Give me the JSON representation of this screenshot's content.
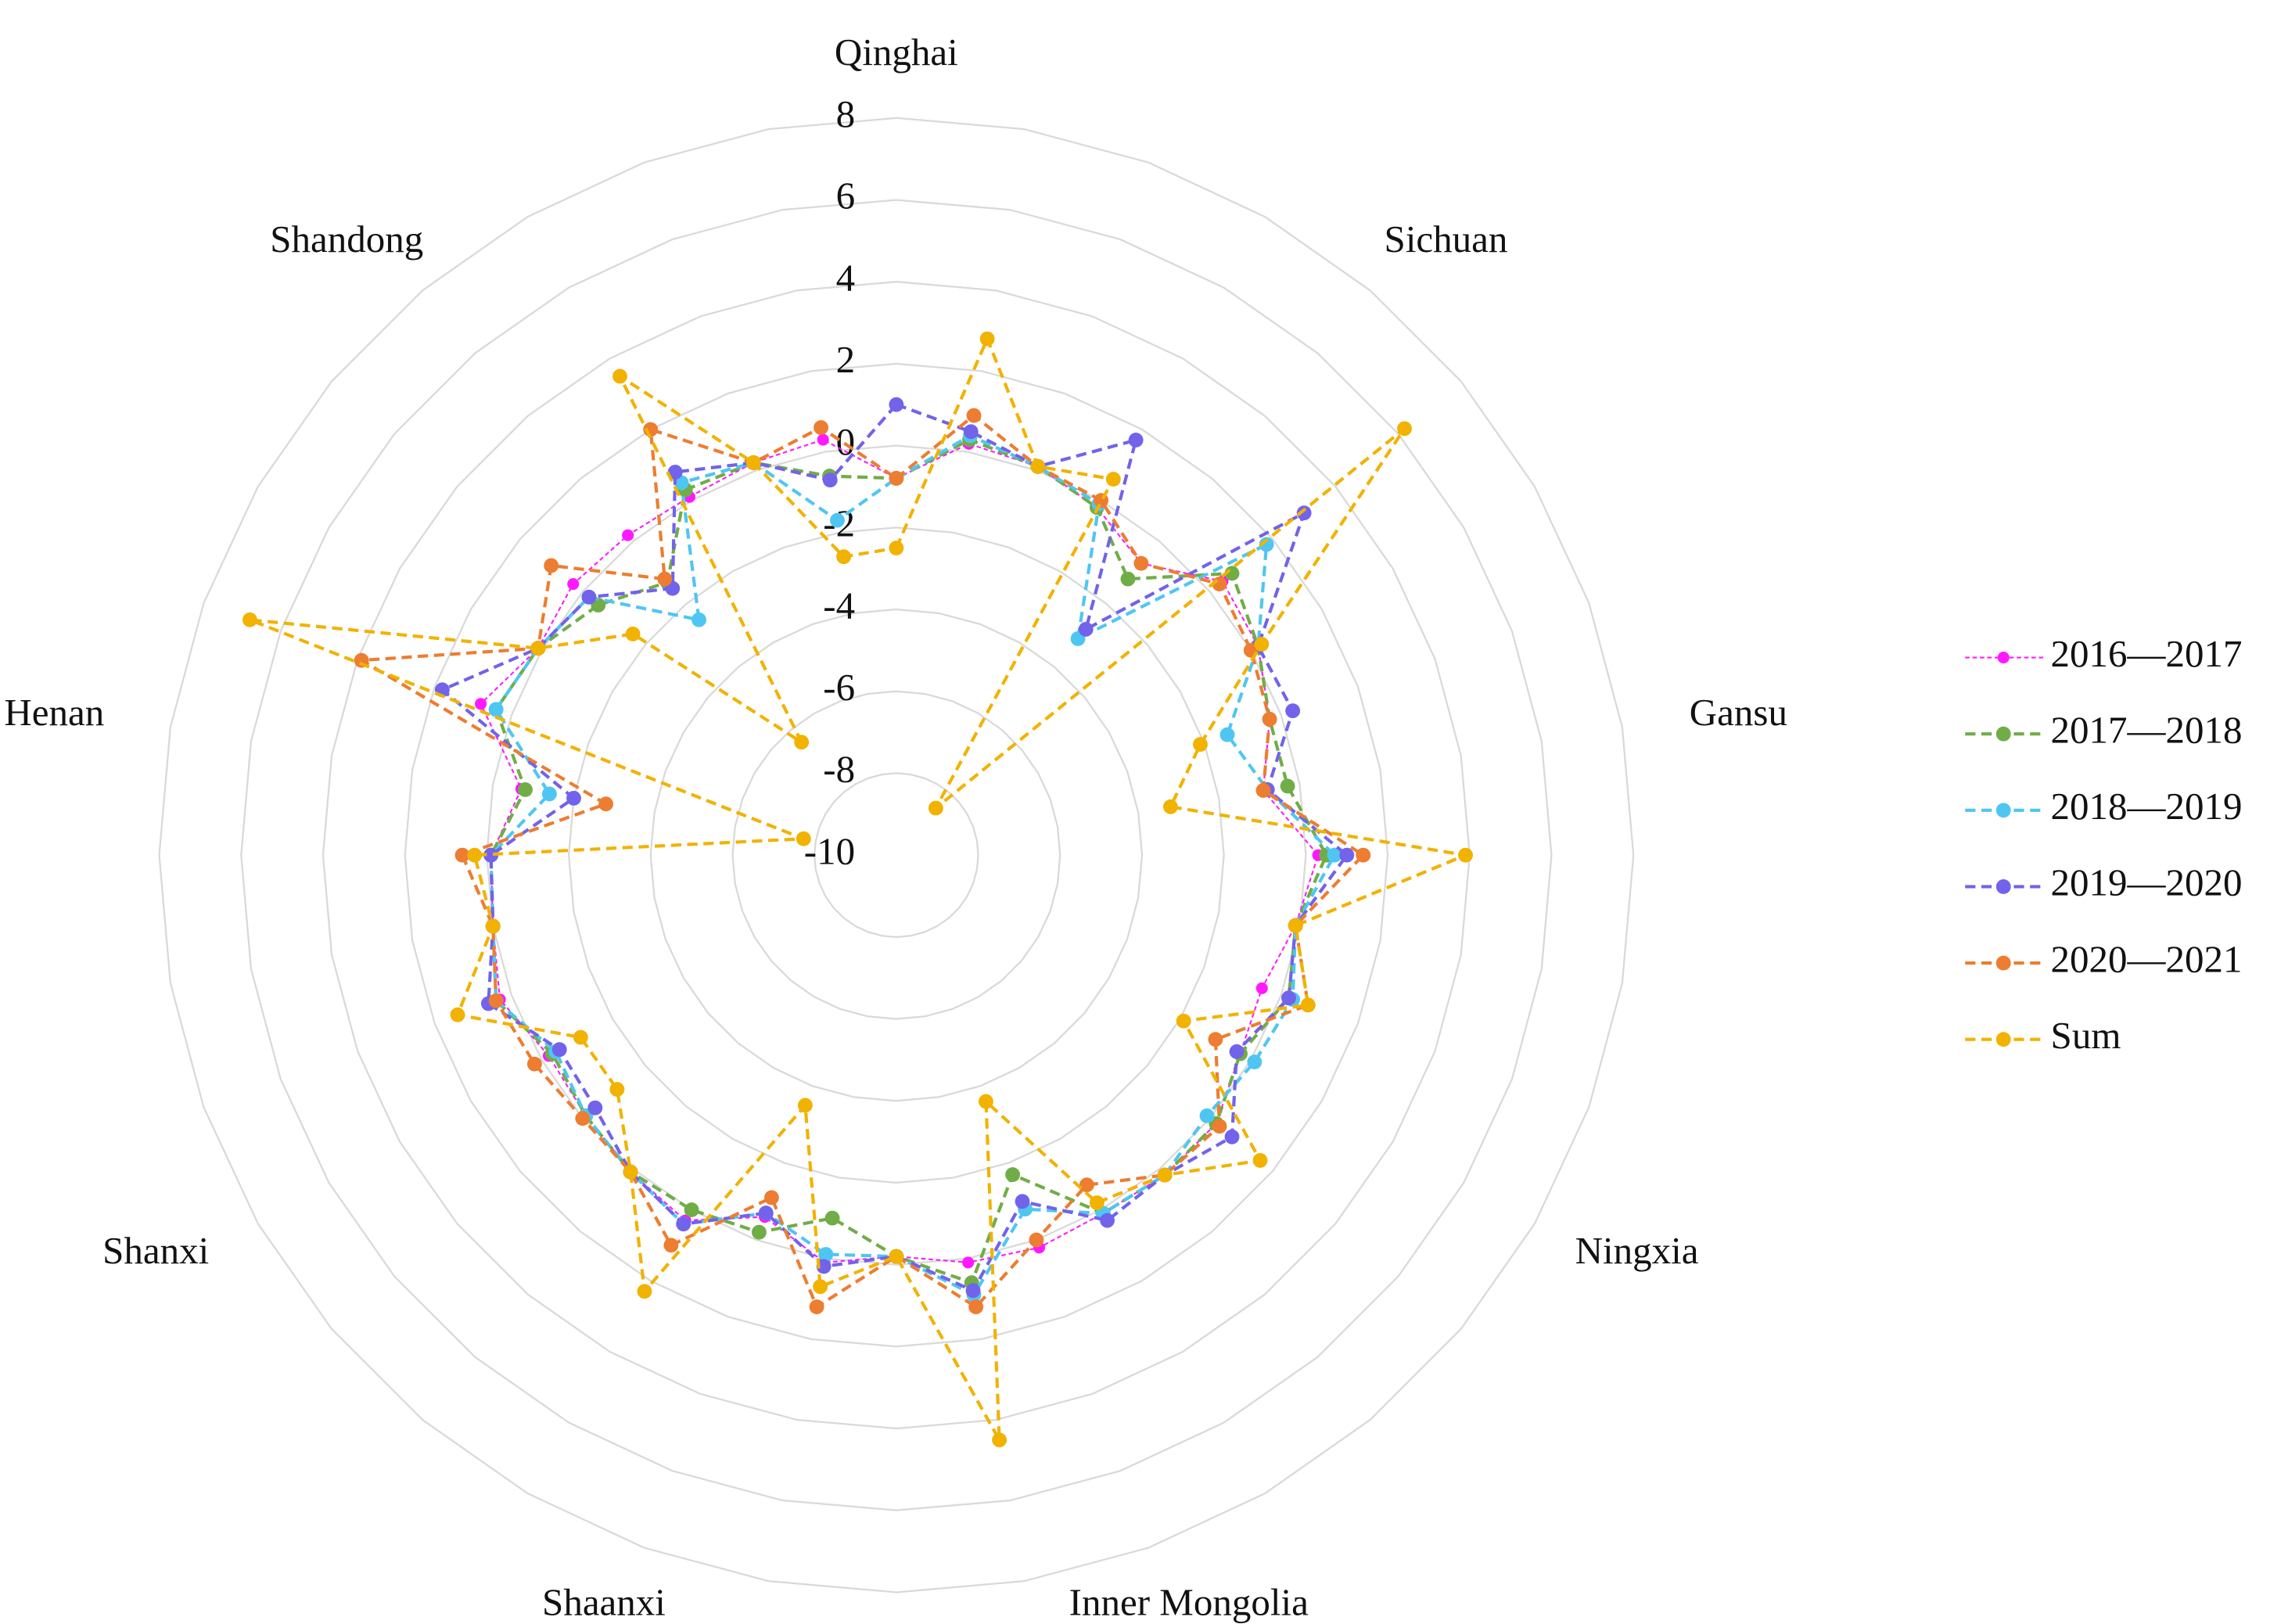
{
  "chart_data": {
    "type": "radar",
    "categories": [
      "Qinghai",
      null,
      null,
      null,
      "Sichuan",
      null,
      null,
      null,
      "Gansu",
      null,
      null,
      null,
      "Ningxia",
      null,
      null,
      null,
      "Inner Mongolia",
      null,
      null,
      null,
      "Shaanxi",
      null,
      null,
      null,
      "Shanxi",
      null,
      null,
      null,
      "Henan",
      null,
      null,
      null,
      "Shandong",
      null,
      null,
      null
    ],
    "ylim": [
      -10,
      8
    ],
    "yticks": [
      -10,
      -8,
      -6,
      -4,
      -2,
      0,
      2,
      4,
      6,
      8
    ],
    "grid": true,
    "legend": "right",
    "series": [
      {
        "name": "2016—2017",
        "color": "#ff19ff",
        "values": [
          -0.8,
          0.2,
          0.1,
          -0.2,
          -0.7,
          0.4,
          0.2,
          -0.3,
          -0.9,
          0.3,
          -0.1,
          -0.5,
          -0.3,
          0.2,
          0.2,
          0.1,
          0.2,
          0.1,
          -0.2,
          0.1,
          -0.6,
          0.3,
          0.1,
          -0.1,
          -0.2,
          0.3,
          0.0,
          -0.1,
          -0.7,
          0.8,
          0.1,
          0.3,
          0.2,
          0.1,
          0.2,
          0.3
        ]
      },
      {
        "name": "2017—2018",
        "color": "#70ad47",
        "values": [
          -0.8,
          0.3,
          0.1,
          -0.2,
          -1.2,
          0.7,
          0.2,
          -0.3,
          -0.3,
          0.5,
          -0.1,
          0.2,
          -0.3,
          0.2,
          0.2,
          0.1,
          -1.7,
          0.6,
          -0.2,
          -1.0,
          -0.2,
          0.0,
          0.1,
          -0.1,
          -0.3,
          0.4,
          0.0,
          -0.1,
          -0.8,
          0.4,
          0.1,
          -0.5,
          -1.3,
          0.3,
          0.2,
          -0.6
        ]
      },
      {
        "name": "2018—2019",
        "color": "#4fc6f2",
        "values": [
          -0.8,
          0.4,
          0.1,
          -0.1,
          -3.1,
          1.8,
          0.2,
          -1.4,
          -0.8,
          0.7,
          -0.1,
          0.3,
          0.1,
          -0.1,
          0.2,
          0.1,
          -0.8,
          0.9,
          -0.2,
          -0.1,
          -0.7,
          0.4,
          0.1,
          -0.1,
          -0.4,
          0.4,
          0.0,
          -0.1,
          -1.4,
          0.4,
          0.1,
          -0.2,
          -2.5,
          0.5,
          0.2,
          -1.7
        ]
      },
      {
        "name": "2019—2020",
        "color": "#7163ea",
        "values": [
          1.0,
          0.5,
          0.1,
          1.7,
          -2.8,
          3.0,
          0.2,
          0.3,
          -0.8,
          1.0,
          -0.1,
          0.2,
          -0.4,
          0.7,
          0.2,
          0.3,
          -1.0,
          0.8,
          -0.2,
          0.2,
          -0.7,
          0.4,
          0.1,
          -0.4,
          -0.5,
          0.6,
          0.0,
          -0.1,
          -2.0,
          1.8,
          0.1,
          -0.2,
          -1.5,
          0.8,
          0.2,
          -0.7
        ]
      },
      {
        "name": "2020—2021",
        "color": "#ed7d31",
        "values": [
          -0.8,
          0.9,
          0.1,
          0.0,
          -0.7,
          0.3,
          0.0,
          -0.3,
          -0.9,
          1.4,
          -0.1,
          0.7,
          -1.0,
          0.3,
          0.2,
          -0.7,
          0.0,
          1.2,
          -0.2,
          1.2,
          -1.1,
          1.0,
          0.1,
          0.0,
          0.2,
          0.4,
          0.0,
          0.6,
          -2.8,
          3.9,
          0.1,
          1.0,
          -1.2,
          2.0,
          0.2,
          0.6
        ]
      },
      {
        "name": "Sum",
        "color": "#f2b200",
        "values": [
          -2.5,
          2.8,
          0.1,
          0.6,
          -8.5,
          6.2,
          0.3,
          -2.1,
          -3.2,
          3.9,
          -0.1,
          0.7,
          -1.9,
          1.6,
          0.2,
          -0.2,
          -3.6,
          4.5,
          -0.2,
          0.7,
          -3.5,
          2.3,
          0.1,
          -1.1,
          -1.1,
          1.4,
          0.0,
          0.3,
          -7.7,
          6.8,
          0.1,
          -1.6,
          -6.4,
          3.5,
          0.2,
          -2.6
        ]
      }
    ]
  }
}
